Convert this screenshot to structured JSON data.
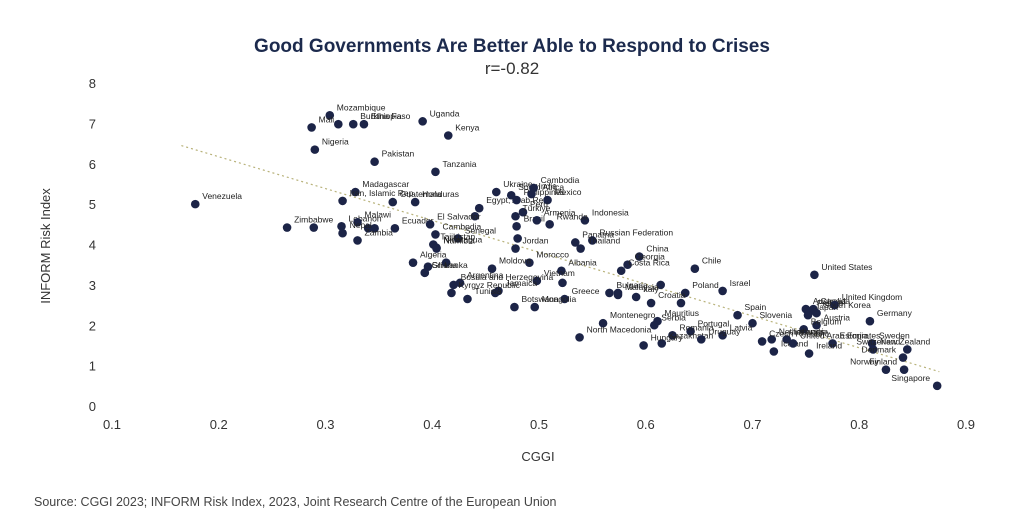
{
  "chart_data": {
    "type": "scatter",
    "title": "Good Governments Are Better Able to Respond to Crises",
    "subtitle": "r=-0.82",
    "xlabel": "CGGI",
    "ylabel": "INFORM Risk Index",
    "xlim": [
      0.1,
      0.9
    ],
    "ylim": [
      0,
      8
    ],
    "xticks": [
      "0.1",
      "0.2",
      "0.3",
      "0.4",
      "0.5",
      "0.6",
      "0.7",
      "0.8",
      "0.9"
    ],
    "yticks": [
      "0",
      "1",
      "2",
      "3",
      "4",
      "5",
      "6",
      "7",
      "8"
    ],
    "grid": false,
    "trendline": {
      "x": [
        0.165,
        0.875
      ],
      "y": [
        6.45,
        0.85
      ],
      "style": "dotted"
    },
    "points": [
      {
        "label": "Venezuela",
        "x": 0.178,
        "y": 5.0
      },
      {
        "label": "Mozambique",
        "x": 0.304,
        "y": 7.2
      },
      {
        "label": "Ethiopia",
        "x": 0.336,
        "y": 6.98
      },
      {
        "label": "",
        "x": 0.312,
        "y": 6.98
      },
      {
        "label": "Mali",
        "x": 0.287,
        "y": 6.9
      },
      {
        "label": "Burkina Faso",
        "x": 0.326,
        "y": 6.98
      },
      {
        "label": "Uganda",
        "x": 0.391,
        "y": 7.05
      },
      {
        "label": "Kenya",
        "x": 0.415,
        "y": 6.7
      },
      {
        "label": "Nigeria",
        "x": 0.29,
        "y": 6.35
      },
      {
        "label": "Pakistan",
        "x": 0.346,
        "y": 6.05
      },
      {
        "label": "Tanzania",
        "x": 0.403,
        "y": 5.8
      },
      {
        "label": "Madagascar",
        "x": 0.328,
        "y": 5.3
      },
      {
        "label": "Guatemala",
        "x": 0.363,
        "y": 5.05
      },
      {
        "label": "Iran, Islamic Rep.",
        "x": 0.316,
        "y": 5.08
      },
      {
        "label": "Honduras",
        "x": 0.384,
        "y": 5.05
      },
      {
        "label": "Egypt, Arab Rep.",
        "x": 0.444,
        "y": 4.9
      },
      {
        "label": "Ukraine",
        "x": 0.46,
        "y": 5.3
      },
      {
        "label": "South Africa",
        "x": 0.474,
        "y": 5.22
      },
      {
        "label": "Philippines",
        "x": 0.479,
        "y": 5.1
      },
      {
        "label": "Cambodia",
        "x": 0.495,
        "y": 5.4
      },
      {
        "label": "India",
        "x": 0.493,
        "y": 5.25
      },
      {
        "label": "Mexico",
        "x": 0.508,
        "y": 5.1
      },
      {
        "label": "Peru",
        "x": 0.485,
        "y": 4.8
      },
      {
        "label": "Türkiye",
        "x": 0.478,
        "y": 4.7
      },
      {
        "label": "Indonesia",
        "x": 0.543,
        "y": 4.6
      },
      {
        "label": "",
        "x": 0.44,
        "y": 4.7
      },
      {
        "label": "Brazil",
        "x": 0.479,
        "y": 4.45
      },
      {
        "label": "Armenia",
        "x": 0.498,
        "y": 4.6
      },
      {
        "label": "Rwanda",
        "x": 0.51,
        "y": 4.5
      },
      {
        "label": "Lebanon",
        "x": 0.315,
        "y": 4.45
      },
      {
        "label": "Zimbabwe",
        "x": 0.264,
        "y": 4.42
      },
      {
        "label": "Malawi",
        "x": 0.33,
        "y": 4.55
      },
      {
        "label": "Ecuador",
        "x": 0.365,
        "y": 4.4
      },
      {
        "label": "El Salvador",
        "x": 0.398,
        "y": 4.5
      },
      {
        "label": "",
        "x": 0.289,
        "y": 4.42
      },
      {
        "label": "",
        "x": 0.34,
        "y": 4.4
      },
      {
        "label": "",
        "x": 0.346,
        "y": 4.4
      },
      {
        "label": "Nepal",
        "x": 0.316,
        "y": 4.28
      },
      {
        "label": "Cambodia",
        "x": 0.403,
        "y": 4.25
      },
      {
        "label": "Senegal",
        "x": 0.424,
        "y": 4.15
      },
      {
        "label": "",
        "x": 0.48,
        "y": 4.15
      },
      {
        "label": "Panama",
        "x": 0.534,
        "y": 4.05
      },
      {
        "label": "Russian Federation",
        "x": 0.55,
        "y": 4.1
      },
      {
        "label": "Zambia",
        "x": 0.33,
        "y": 4.1
      },
      {
        "label": "Tajikistan",
        "x": 0.401,
        "y": 4.0
      },
      {
        "label": "Jordan",
        "x": 0.478,
        "y": 3.9
      },
      {
        "label": "Thailand",
        "x": 0.539,
        "y": 3.9
      },
      {
        "label": "Nicaragua",
        "x": 0.404,
        "y": 3.92
      },
      {
        "label": "Namibia",
        "x": 0.404,
        "y": 3.9
      },
      {
        "label": "China",
        "x": 0.594,
        "y": 3.7
      },
      {
        "label": "Algeria",
        "x": 0.382,
        "y": 3.55
      },
      {
        "label": "",
        "x": 0.413,
        "y": 3.55
      },
      {
        "label": "Morocco",
        "x": 0.491,
        "y": 3.55
      },
      {
        "label": "Georgia",
        "x": 0.583,
        "y": 3.5
      },
      {
        "label": "Moldova",
        "x": 0.456,
        "y": 3.4
      },
      {
        "label": "Chile",
        "x": 0.646,
        "y": 3.4
      },
      {
        "label": "",
        "x": 0.396,
        "y": 3.45
      },
      {
        "label": "Costa Rica",
        "x": 0.577,
        "y": 3.35
      },
      {
        "label": "Albania",
        "x": 0.521,
        "y": 3.35
      },
      {
        "label": "Ghana",
        "x": 0.393,
        "y": 3.3
      },
      {
        "label": "United States",
        "x": 0.758,
        "y": 3.25
      },
      {
        "label": "Vietnam",
        "x": 0.498,
        "y": 3.1
      },
      {
        "label": "Argentina",
        "x": 0.426,
        "y": 3.05
      },
      {
        "label": "Bosnia and Herzegovina",
        "x": 0.42,
        "y": 3.0
      },
      {
        "label": "",
        "x": 0.614,
        "y": 3.0
      },
      {
        "label": "",
        "x": 0.522,
        "y": 3.05
      },
      {
        "label": "Israel",
        "x": 0.672,
        "y": 2.85
      },
      {
        "label": "Poland",
        "x": 0.637,
        "y": 2.8
      },
      {
        "label": "Jamaica",
        "x": 0.462,
        "y": 2.85
      },
      {
        "label": "Bulgaria",
        "x": 0.566,
        "y": 2.8
      },
      {
        "label": "",
        "x": 0.459,
        "y": 2.8
      },
      {
        "label": "Malaysia",
        "x": 0.574,
        "y": 2.75
      },
      {
        "label": "Italy",
        "x": 0.591,
        "y": 2.7
      },
      {
        "label": "Tunisia",
        "x": 0.433,
        "y": 2.65
      },
      {
        "label": "Greece",
        "x": 0.524,
        "y": 2.65
      },
      {
        "label": "",
        "x": 0.574,
        "y": 2.8
      },
      {
        "label": "Croatia",
        "x": 0.605,
        "y": 2.55
      },
      {
        "label": "Mongolia",
        "x": 0.496,
        "y": 2.45
      },
      {
        "label": "",
        "x": 0.633,
        "y": 2.55
      },
      {
        "label": "Australia",
        "x": 0.75,
        "y": 2.4
      },
      {
        "label": "France",
        "x": 0.754,
        "y": 2.35
      },
      {
        "label": "Canada",
        "x": 0.757,
        "y": 2.4
      },
      {
        "label": "Japan",
        "x": 0.752,
        "y": 2.25
      },
      {
        "label": "United Kingdom",
        "x": 0.777,
        "y": 2.5
      },
      {
        "label": "South Korea",
        "x": 0.76,
        "y": 2.3
      },
      {
        "label": "Spain",
        "x": 0.686,
        "y": 2.25
      },
      {
        "label": "Germany",
        "x": 0.81,
        "y": 2.1
      },
      {
        "label": "Slovenia",
        "x": 0.7,
        "y": 2.05
      },
      {
        "label": "Mauritius",
        "x": 0.611,
        "y": 2.1
      },
      {
        "label": "Montenegro",
        "x": 0.56,
        "y": 2.05
      },
      {
        "label": "Austria",
        "x": 0.76,
        "y": 2.0
      },
      {
        "label": "Belgium",
        "x": 0.748,
        "y": 1.9
      },
      {
        "label": "Serbia",
        "x": 0.608,
        "y": 2.0
      },
      {
        "label": "Portugal",
        "x": 0.642,
        "y": 1.85
      },
      {
        "label": "Romania",
        "x": 0.625,
        "y": 1.75
      },
      {
        "label": "Latvia",
        "x": 0.672,
        "y": 1.75
      },
      {
        "label": "Netherlands",
        "x": 0.718,
        "y": 1.65
      },
      {
        "label": "Sweden",
        "x": 0.812,
        "y": 1.55
      },
      {
        "label": "Switzerland",
        "x": 0.845,
        "y": 1.4
      },
      {
        "label": "Lithuania",
        "x": 0.732,
        "y": 1.65
      },
      {
        "label": "North Macedonia",
        "x": 0.538,
        "y": 1.7
      },
      {
        "label": "Estonia",
        "x": 0.775,
        "y": 1.55
      },
      {
        "label": "Czech Republic",
        "x": 0.709,
        "y": 1.6
      },
      {
        "label": "New Zealand",
        "x": 0.813,
        "y": 1.4
      },
      {
        "label": "Denmark",
        "x": 0.841,
        "y": 1.2
      },
      {
        "label": "Kazakhstan",
        "x": 0.615,
        "y": 1.55
      },
      {
        "label": "Hungary",
        "x": 0.598,
        "y": 1.5
      },
      {
        "label": "Uruguay",
        "x": 0.652,
        "y": 1.65
      },
      {
        "label": "Iceland",
        "x": 0.72,
        "y": 1.35
      },
      {
        "label": "Ireland",
        "x": 0.753,
        "y": 1.3
      },
      {
        "label": "United Arab Emirates",
        "x": 0.738,
        "y": 1.55
      },
      {
        "label": "Norway",
        "x": 0.825,
        "y": 0.9
      },
      {
        "label": "Finland",
        "x": 0.842,
        "y": 0.9
      },
      {
        "label": "Singapore",
        "x": 0.873,
        "y": 0.5
      },
      {
        "label": "Sri Lanka",
        "x": 0.393,
        "y": 3.3
      },
      {
        "label": "Kyrgyz Republic",
        "x": 0.418,
        "y": 2.8
      },
      {
        "label": "Botswana",
        "x": 0.477,
        "y": 2.45
      }
    ],
    "source": "Source: CGGI 2023; INFORM Risk Index, 2023, Joint Research Centre of the European Union",
    "colors": {
      "point": "#1c2447",
      "trend": "#b8b27a",
      "title": "#1c2a4d"
    }
  }
}
